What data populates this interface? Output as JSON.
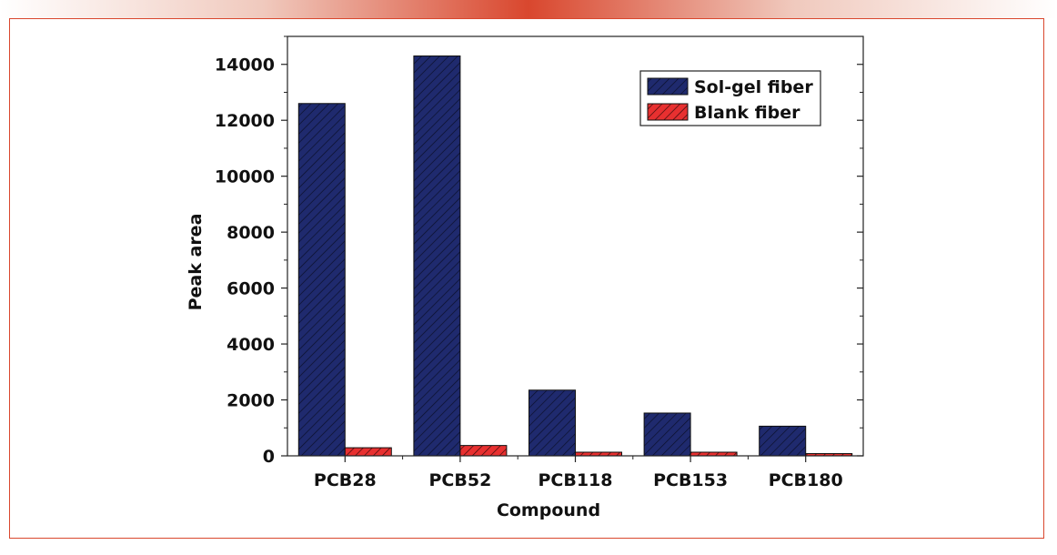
{
  "chart_data": {
    "type": "bar",
    "title": "",
    "xlabel": "Compound",
    "ylabel": "Peak area",
    "categories": [
      "PCB28",
      "PCB52",
      "PCB118",
      "PCB153",
      "PCB180"
    ],
    "series": [
      {
        "name": "Sol-gel fiber",
        "values": [
          12600,
          14300,
          2350,
          1530,
          1060
        ],
        "color": "#1f2a6e",
        "hatch": "#111111"
      },
      {
        "name": "Blank fiber",
        "values": [
          290,
          370,
          130,
          130,
          80
        ],
        "color": "#e83030",
        "hatch": "#111111"
      }
    ],
    "ylim": [
      0,
      15000
    ],
    "yticks": [
      0,
      2000,
      4000,
      6000,
      8000,
      10000,
      12000,
      14000
    ],
    "ytick_labels": [
      "0",
      "2000",
      "4000",
      "6000",
      "8000",
      "10000",
      "12000",
      "14000"
    ],
    "legend_position": "top-right",
    "grid": false
  },
  "colors": {
    "accent": "#d9472e",
    "frame": "#d9472e"
  }
}
